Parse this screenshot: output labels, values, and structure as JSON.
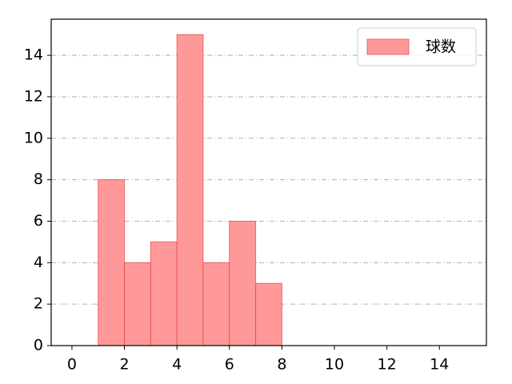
{
  "chart_data": {
    "type": "histogram",
    "bins": [
      1,
      2,
      3,
      4,
      5,
      6,
      7,
      8
    ],
    "series": [
      {
        "name": "球数",
        "color": "#ff9999",
        "values": [
          8,
          4,
          5,
          15,
          4,
          6,
          3
        ]
      }
    ],
    "xlim": [
      -0.79,
      15.79
    ],
    "xticks": [
      0,
      2,
      4,
      6,
      8,
      10,
      12,
      14
    ],
    "ylim": [
      0,
      15.74
    ],
    "yticks": [
      0,
      2,
      4,
      6,
      8,
      10,
      12,
      14
    ],
    "grid": true,
    "legend": "upper right"
  }
}
